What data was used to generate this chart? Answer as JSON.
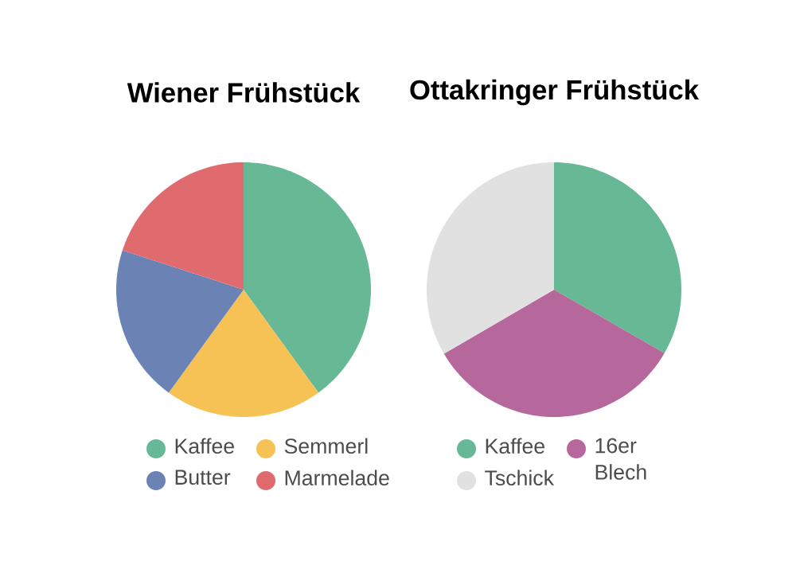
{
  "chart_data": [
    {
      "type": "pie",
      "title": "Wiener Frühstück",
      "categories": [
        "Kaffee",
        "Semmerl",
        "Butter",
        "Marmelade"
      ],
      "values": [
        40,
        20,
        20,
        20
      ],
      "colors": [
        "#66b994",
        "#f6c256",
        "#6a82b4",
        "#e06b6e"
      ],
      "legend": "bottom"
    },
    {
      "type": "pie",
      "title": "Ottakringer Frühstück",
      "categories": [
        "Kaffee",
        "16er Blech",
        "Tschick"
      ],
      "values": [
        33.3,
        33.3,
        33.4
      ],
      "colors": [
        "#66b994",
        "#b6679c",
        "#e2e1e1"
      ],
      "legend": "bottom"
    }
  ]
}
